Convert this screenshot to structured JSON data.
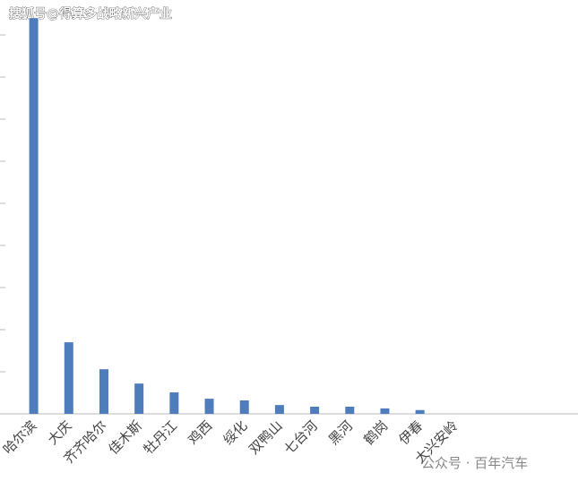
{
  "chart_data": {
    "type": "bar",
    "watermark_top": "搜狐号@得算多战略新兴产业",
    "watermark_bottom": "公众号 · 百年汽车",
    "categories": [
      "哈尔滨",
      "大庆",
      "齐齐哈尔",
      "佳木斯",
      "牡丹江",
      "鸡西",
      "绥化",
      "双鸭山",
      "七台河",
      "黑河",
      "鹤岗",
      "伊春",
      "大兴安岭",
      null,
      null,
      null
    ],
    "values": [
      9.4,
      1.7,
      1.06,
      0.72,
      0.51,
      0.36,
      0.32,
      0.21,
      0.17,
      0.17,
      0.13,
      0.09,
      0,
      null,
      null,
      null
    ],
    "color": "#4f7dbb",
    "ylim": [
      0,
      10
    ],
    "yticks": [
      0,
      1,
      2,
      3,
      4,
      5,
      6,
      7,
      8,
      9
    ]
  }
}
